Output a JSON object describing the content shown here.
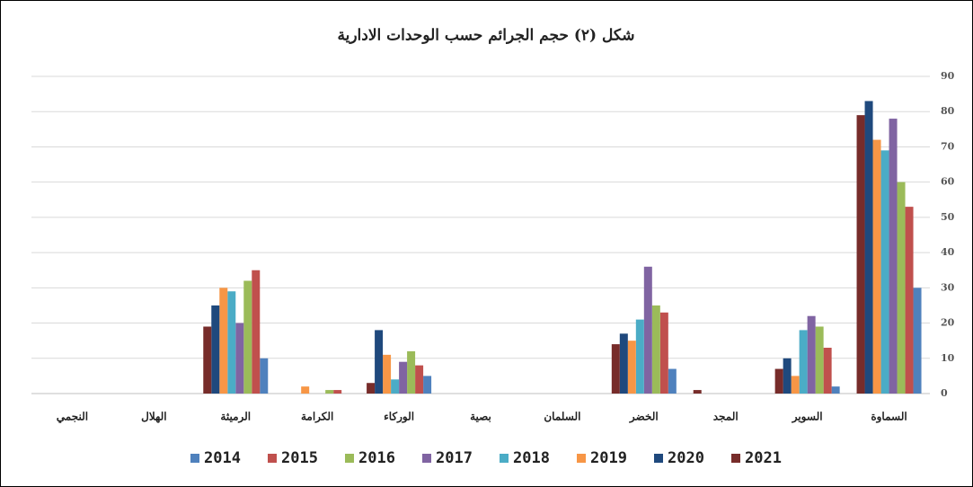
{
  "chart_data": {
    "type": "bar",
    "title": "شكل (٢) حجم الجرائم حسب الوحدات الادارية",
    "categories": [
      "السماوة",
      "السوير",
      "المجد",
      "الخضر",
      "السلمان",
      "بصية",
      "الوركاء",
      "الكرامة",
      "الرميثة",
      "الهلال",
      "النجمي"
    ],
    "x_reversed": true,
    "y_axis_side": "right",
    "series": [
      {
        "name": "2014",
        "color": "#4f81bd",
        "values": [
          30,
          2,
          0,
          7,
          0,
          0,
          5,
          0,
          10,
          0,
          0
        ]
      },
      {
        "name": "2015",
        "color": "#c0504d",
        "values": [
          53,
          13,
          0,
          23,
          0,
          0,
          8,
          1,
          35,
          0,
          0
        ]
      },
      {
        "name": "2016",
        "color": "#9bbb59",
        "values": [
          60,
          19,
          0,
          25,
          0,
          0,
          12,
          1,
          32,
          0,
          0
        ]
      },
      {
        "name": "2017",
        "color": "#8064a2",
        "values": [
          78,
          22,
          0,
          36,
          0,
          0,
          9,
          0,
          20,
          0,
          0
        ]
      },
      {
        "name": "2018",
        "color": "#4bacc6",
        "values": [
          69,
          18,
          0,
          21,
          0,
          0,
          4,
          0,
          29,
          0,
          0
        ]
      },
      {
        "name": "2019",
        "color": "#f79646",
        "values": [
          72,
          5,
          0,
          15,
          0,
          0,
          11,
          2,
          30,
          0,
          0
        ]
      },
      {
        "name": "2020",
        "color": "#1f497d",
        "values": [
          83,
          10,
          0,
          17,
          0,
          0,
          18,
          0,
          25,
          0,
          0
        ]
      },
      {
        "name": "2021",
        "color": "#772c2a",
        "values": [
          79,
          7,
          1,
          14,
          0,
          0,
          3,
          0,
          19,
          0,
          0
        ]
      }
    ],
    "ylim": [
      0,
      90
    ],
    "yticks": [
      0,
      10,
      20,
      30,
      40,
      50,
      60,
      70,
      80,
      90
    ],
    "grid": true
  }
}
